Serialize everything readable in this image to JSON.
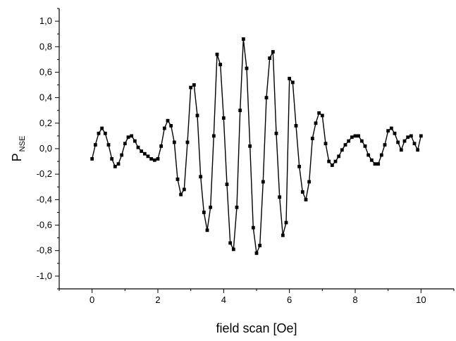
{
  "chart_data": {
    "type": "line",
    "title": "",
    "xlabel": "field scan [Oe]",
    "ylabel": {
      "main": "P",
      "subscript": "NSE"
    },
    "xlim": [
      -1,
      11
    ],
    "ylim": [
      -1.1,
      1.1
    ],
    "x_ticks": [
      0,
      2,
      4,
      6,
      8,
      10
    ],
    "x_tick_labels": [
      "0",
      "2",
      "4",
      "6",
      "8",
      "10"
    ],
    "y_ticks": [
      -1.0,
      -0.8,
      -0.6,
      -0.4,
      -0.2,
      0.0,
      0.2,
      0.4,
      0.6,
      0.8,
      1.0
    ],
    "y_tick_labels": [
      "-1,0",
      "-0,8",
      "-0,6",
      "-0,4",
      "-0,2",
      "0,0",
      "0,2",
      "0,4",
      "0,6",
      "0,8",
      "1,0"
    ],
    "grid": false,
    "legend": "none",
    "marker": "square",
    "series": [
      {
        "color": "#000000",
        "x": [
          0.0,
          0.1,
          0.2,
          0.3,
          0.4,
          0.5,
          0.6,
          0.7,
          0.8,
          0.9,
          1.0,
          1.1,
          1.2,
          1.3,
          1.4,
          1.5,
          1.6,
          1.7,
          1.8,
          1.9,
          2.0,
          2.1,
          2.2,
          2.3,
          2.4,
          2.5,
          2.6,
          2.7,
          2.8,
          2.9,
          3.0,
          3.1,
          3.2,
          3.3,
          3.4,
          3.5,
          3.6,
          3.7,
          3.8,
          3.9,
          4.0,
          4.1,
          4.2,
          4.3,
          4.4,
          4.5,
          4.6,
          4.7,
          4.8,
          4.9,
          5.0,
          5.1,
          5.2,
          5.3,
          5.4,
          5.5,
          5.6,
          5.7,
          5.8,
          5.9,
          6.0,
          6.1,
          6.2,
          6.3,
          6.4,
          6.5,
          6.6,
          6.7,
          6.8,
          6.9,
          7.0,
          7.1,
          7.2,
          7.3,
          7.4,
          7.5,
          7.6,
          7.7,
          7.8,
          7.9,
          8.0,
          8.1,
          8.2,
          8.3,
          8.4,
          8.5,
          8.6,
          8.7,
          8.8,
          8.9,
          9.0,
          9.1,
          9.2,
          9.3,
          9.4,
          9.5,
          9.6,
          9.7,
          9.8,
          9.9,
          10.0
        ],
        "y": [
          -0.08,
          0.03,
          0.12,
          0.16,
          0.12,
          0.03,
          -0.08,
          -0.14,
          -0.12,
          -0.05,
          0.04,
          0.09,
          0.1,
          0.06,
          0.01,
          -0.02,
          -0.04,
          -0.06,
          -0.08,
          -0.09,
          -0.08,
          0.02,
          0.16,
          0.22,
          0.18,
          0.05,
          -0.24,
          -0.36,
          -0.32,
          0.05,
          0.48,
          0.5,
          0.26,
          -0.22,
          -0.5,
          -0.64,
          -0.46,
          0.1,
          0.74,
          0.66,
          0.24,
          -0.28,
          -0.74,
          -0.79,
          -0.46,
          0.3,
          0.86,
          0.63,
          0.02,
          -0.62,
          -0.82,
          -0.76,
          -0.26,
          0.4,
          0.71,
          0.76,
          0.12,
          -0.38,
          -0.68,
          -0.58,
          0.55,
          0.52,
          0.18,
          -0.14,
          -0.34,
          -0.4,
          -0.26,
          0.08,
          0.2,
          0.28,
          0.26,
          0.04,
          -0.1,
          -0.13,
          -0.1,
          -0.06,
          -0.01,
          0.03,
          0.06,
          0.09,
          0.1,
          0.1,
          0.06,
          0.02,
          -0.05,
          -0.09,
          -0.12,
          -0.12,
          -0.05,
          0.03,
          0.14,
          0.16,
          0.12,
          0.05,
          -0.01,
          0.06,
          0.09,
          0.1,
          0.04,
          -0.01,
          0.1
        ]
      }
    ]
  }
}
